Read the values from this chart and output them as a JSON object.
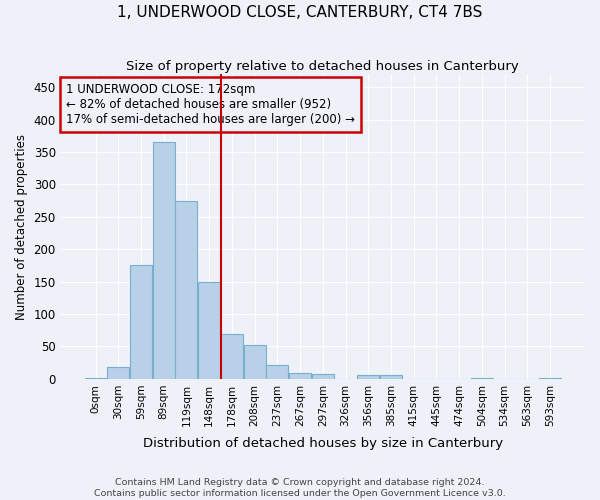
{
  "title": "1, UNDERWOOD CLOSE, CANTERBURY, CT4 7BS",
  "subtitle": "Size of property relative to detached houses in Canterbury",
  "xlabel": "Distribution of detached houses by size in Canterbury",
  "ylabel": "Number of detached properties",
  "bar_labels": [
    "0sqm",
    "30sqm",
    "59sqm",
    "89sqm",
    "119sqm",
    "148sqm",
    "178sqm",
    "208sqm",
    "237sqm",
    "267sqm",
    "297sqm",
    "326sqm",
    "356sqm",
    "385sqm",
    "415sqm",
    "445sqm",
    "474sqm",
    "504sqm",
    "534sqm",
    "563sqm",
    "593sqm"
  ],
  "bar_values": [
    2,
    18,
    175,
    365,
    275,
    150,
    70,
    53,
    22,
    9,
    8,
    0,
    6,
    6,
    0,
    0,
    0,
    2,
    0,
    0,
    2
  ],
  "bar_color": "#b8d0e8",
  "bar_edgecolor": "#7aaecf",
  "property_line_color": "#cc0000",
  "annotation_line1": "1 UNDERWOOD CLOSE: 172sqm",
  "annotation_line2": "← 82% of detached houses are smaller (952)",
  "annotation_line3": "17% of semi-detached houses are larger (200) →",
  "annotation_box_color": "#cc0000",
  "bg_color": "#eef2f8",
  "grid_color": "#ffffff",
  "footnote": "Contains HM Land Registry data © Crown copyright and database right 2024.\nContains public sector information licensed under the Open Government Licence v3.0.",
  "ylim": [
    0,
    470
  ],
  "yticks": [
    0,
    50,
    100,
    150,
    200,
    250,
    300,
    350,
    400,
    450
  ]
}
